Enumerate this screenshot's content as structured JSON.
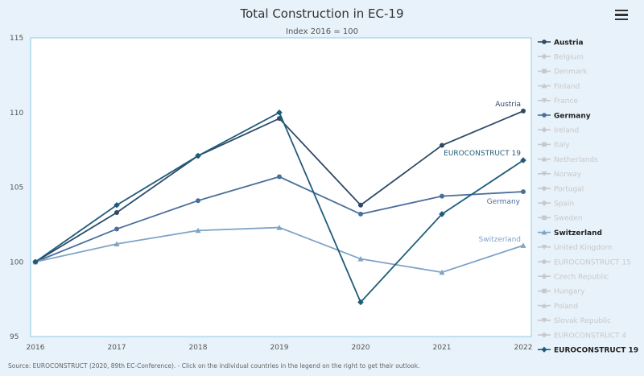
{
  "chart_data": {
    "type": "line",
    "title": "Total Construction in EC-19",
    "subtitle": "Index 2016 = 100",
    "x": [
      "2016",
      "2017",
      "2018",
      "2019",
      "2020",
      "2021",
      "2022"
    ],
    "ylim": [
      95,
      115
    ],
    "yticks": [
      95,
      100,
      105,
      110,
      115
    ],
    "grid": false,
    "legend_position": "right",
    "series": [
      {
        "name": "Austria",
        "values": [
          100,
          103.3,
          107.1,
          109.6,
          103.8,
          107.8,
          110.1
        ],
        "color": "#2f4a66",
        "marker": "circle",
        "label": "Austria"
      },
      {
        "name": "Germany",
        "values": [
          100,
          102.2,
          104.1,
          105.7,
          103.2,
          104.4,
          104.7
        ],
        "color": "#4a6f9c",
        "marker": "circle",
        "label": "Germany"
      },
      {
        "name": "Switzerland",
        "values": [
          100,
          101.2,
          102.1,
          102.3,
          100.2,
          99.3,
          101.1
        ],
        "color": "#7fa3c6",
        "marker": "triangle",
        "label": "Switzerland"
      },
      {
        "name": "EUROCONSTRUCT 19",
        "values": [
          100,
          103.8,
          107.1,
          110.0,
          97.3,
          103.2,
          106.8
        ],
        "color": "#1f5c7a",
        "marker": "diamond",
        "label": "EUROCONSTRUCT 19"
      }
    ]
  },
  "legend": [
    {
      "name": "Austria",
      "active": true,
      "marker": "circle",
      "color": "#2f4a66"
    },
    {
      "name": "Belgium",
      "active": false,
      "marker": "diamond"
    },
    {
      "name": "Denmark",
      "active": false,
      "marker": "square"
    },
    {
      "name": "Finland",
      "active": false,
      "marker": "triangle"
    },
    {
      "name": "France",
      "active": false,
      "marker": "triangle-down"
    },
    {
      "name": "Germany",
      "active": true,
      "marker": "circle",
      "color": "#4a6f9c"
    },
    {
      "name": "Ireland",
      "active": false,
      "marker": "diamond"
    },
    {
      "name": "Italy",
      "active": false,
      "marker": "square"
    },
    {
      "name": "Netherlands",
      "active": false,
      "marker": "triangle"
    },
    {
      "name": "Norway",
      "active": false,
      "marker": "triangle-down"
    },
    {
      "name": "Portugal",
      "active": false,
      "marker": "circle"
    },
    {
      "name": "Spain",
      "active": false,
      "marker": "diamond"
    },
    {
      "name": "Sweden",
      "active": false,
      "marker": "square"
    },
    {
      "name": "Switzerland",
      "active": true,
      "marker": "triangle",
      "color": "#7fa3c6"
    },
    {
      "name": "United Kingdom",
      "active": false,
      "marker": "triangle-down"
    },
    {
      "name": "EUROCONSTRUCT 15",
      "active": false,
      "marker": "circle"
    },
    {
      "name": "Czech Republic",
      "active": false,
      "marker": "diamond"
    },
    {
      "name": "Hungary",
      "active": false,
      "marker": "square"
    },
    {
      "name": "Poland",
      "active": false,
      "marker": "triangle"
    },
    {
      "name": "Slovak Republic",
      "active": false,
      "marker": "triangle-down"
    },
    {
      "name": "EUROCONSTRUCT 4",
      "active": false,
      "marker": "circle"
    },
    {
      "name": "EUROCONSTRUCT 19",
      "active": true,
      "marker": "diamond",
      "color": "#1f5c7a"
    }
  ],
  "footer": "Source: EUROCONSTRUCT (2020, 89th EC-Conference). - Click on the individual countries in the legend on the right to get their outlook.",
  "colors": {
    "background": "#e8f2fa",
    "plot_background": "#ffffff",
    "plot_border": "#8fcbe6",
    "inactive_legend": "#c8c8c8",
    "axis_text": "#555555"
  },
  "menu_icon": "hamburger-menu-icon"
}
